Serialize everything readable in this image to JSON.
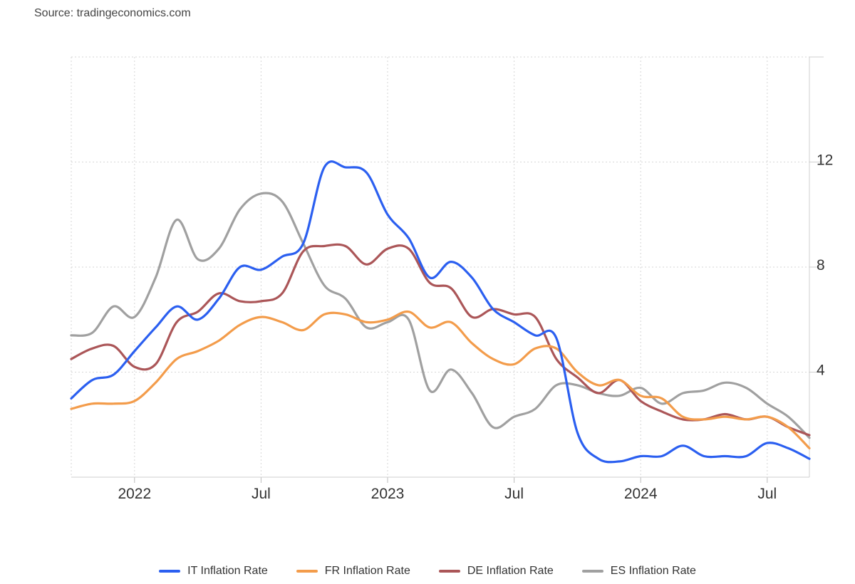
{
  "source": "Source: tradingeconomics.com",
  "chart_data": {
    "type": "line",
    "x_ticks": [
      {
        "label": "2022",
        "date": "2022-01"
      },
      {
        "label": "Jul",
        "date": "2022-07"
      },
      {
        "label": "2023",
        "date": "2023-01"
      },
      {
        "label": "Jul",
        "date": "2023-07"
      },
      {
        "label": "2024",
        "date": "2024-01"
      },
      {
        "label": "Jul",
        "date": "2024-07"
      }
    ],
    "y_ticks": [
      4,
      8,
      12
    ],
    "xlim": [
      "2021-10",
      "2024-09"
    ],
    "ylim": [
      0,
      16
    ],
    "grid": true,
    "legend_position": "bottom",
    "dates": [
      "2021-10",
      "2021-11",
      "2021-12",
      "2022-01",
      "2022-02",
      "2022-03",
      "2022-04",
      "2022-05",
      "2022-06",
      "2022-07",
      "2022-08",
      "2022-09",
      "2022-10",
      "2022-11",
      "2022-12",
      "2023-01",
      "2023-02",
      "2023-03",
      "2023-04",
      "2023-05",
      "2023-06",
      "2023-07",
      "2023-08",
      "2023-09",
      "2023-10",
      "2023-11",
      "2023-12",
      "2024-01",
      "2024-02",
      "2024-03",
      "2024-04",
      "2024-05",
      "2024-06",
      "2024-07",
      "2024-08",
      "2024-09"
    ],
    "series": [
      {
        "name": "IT Inflation Rate",
        "color": "#2b5ff0",
        "values": [
          3.0,
          3.7,
          3.9,
          4.8,
          5.7,
          6.5,
          6.0,
          6.8,
          8.0,
          7.9,
          8.4,
          8.9,
          11.8,
          11.8,
          11.6,
          10.0,
          9.1,
          7.6,
          8.2,
          7.6,
          6.4,
          5.9,
          5.4,
          5.3,
          1.7,
          0.7,
          0.6,
          0.8,
          0.8,
          1.2,
          0.8,
          0.8,
          0.8,
          1.3,
          1.1,
          0.7
        ]
      },
      {
        "name": "FR Inflation Rate",
        "color": "#f39c4b",
        "values": [
          2.6,
          2.8,
          2.8,
          2.9,
          3.6,
          4.5,
          4.8,
          5.2,
          5.8,
          6.1,
          5.9,
          5.6,
          6.2,
          6.2,
          5.9,
          6.0,
          6.3,
          5.7,
          5.9,
          5.1,
          4.5,
          4.3,
          4.9,
          4.9,
          4.0,
          3.5,
          3.7,
          3.1,
          3.0,
          2.3,
          2.2,
          2.3,
          2.2,
          2.3,
          1.9,
          1.1
        ]
      },
      {
        "name": "DE Inflation Rate",
        "color": "#ab5658",
        "values": [
          4.5,
          4.9,
          5.0,
          4.2,
          4.3,
          5.9,
          6.3,
          7.0,
          6.7,
          6.7,
          7.0,
          8.6,
          8.8,
          8.8,
          8.1,
          8.7,
          8.7,
          7.4,
          7.2,
          6.1,
          6.4,
          6.2,
          6.1,
          4.5,
          3.8,
          3.2,
          3.7,
          2.9,
          2.5,
          2.2,
          2.2,
          2.4,
          2.2,
          2.3,
          1.9,
          1.6
        ]
      },
      {
        "name": "ES Inflation Rate",
        "color": "#a0a0a0",
        "values": [
          5.4,
          5.5,
          6.5,
          6.1,
          7.6,
          9.8,
          8.3,
          8.7,
          10.2,
          10.8,
          10.5,
          8.9,
          7.3,
          6.8,
          5.7,
          5.9,
          6.0,
          3.3,
          4.1,
          3.2,
          1.9,
          2.3,
          2.6,
          3.5,
          3.5,
          3.2,
          3.1,
          3.4,
          2.8,
          3.2,
          3.3,
          3.6,
          3.4,
          2.8,
          2.3,
          1.5
        ]
      }
    ]
  }
}
